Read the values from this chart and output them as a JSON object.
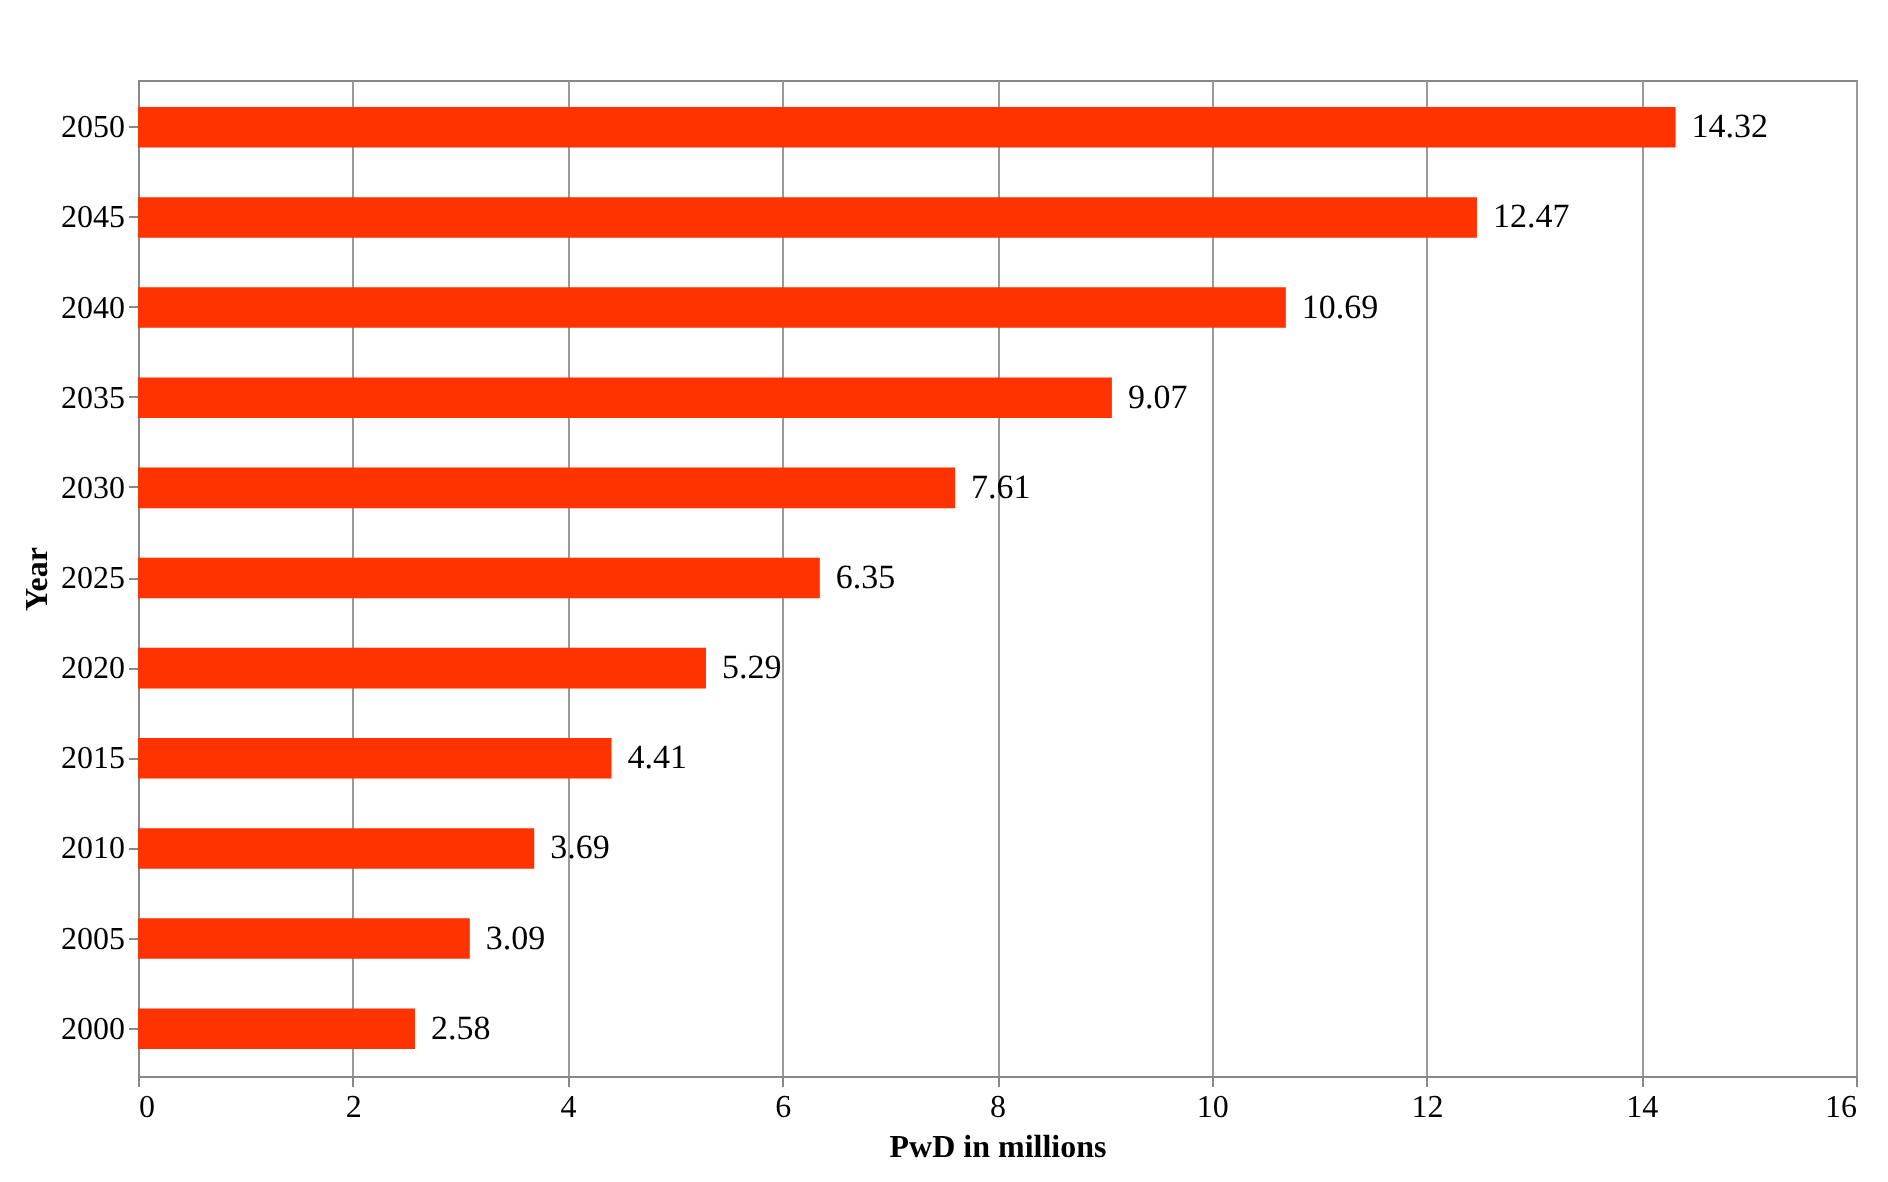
{
  "chart_data": {
    "type": "bar",
    "orientation": "horizontal",
    "xlabel": "PwD in millions",
    "ylabel": "Year",
    "categories": [
      "2050",
      "2045",
      "2040",
      "2035",
      "2030",
      "2025",
      "2020",
      "2015",
      "2010",
      "2005",
      "2000"
    ],
    "values": [
      14.32,
      12.47,
      10.69,
      9.07,
      7.61,
      6.35,
      5.29,
      4.41,
      3.69,
      3.09,
      2.58
    ],
    "color": "#ff3300",
    "xlim": [
      0,
      16
    ],
    "xticks": [
      0,
      2,
      4,
      6,
      8,
      10,
      12,
      14,
      16
    ],
    "grid": "x",
    "data_labels": true
  }
}
